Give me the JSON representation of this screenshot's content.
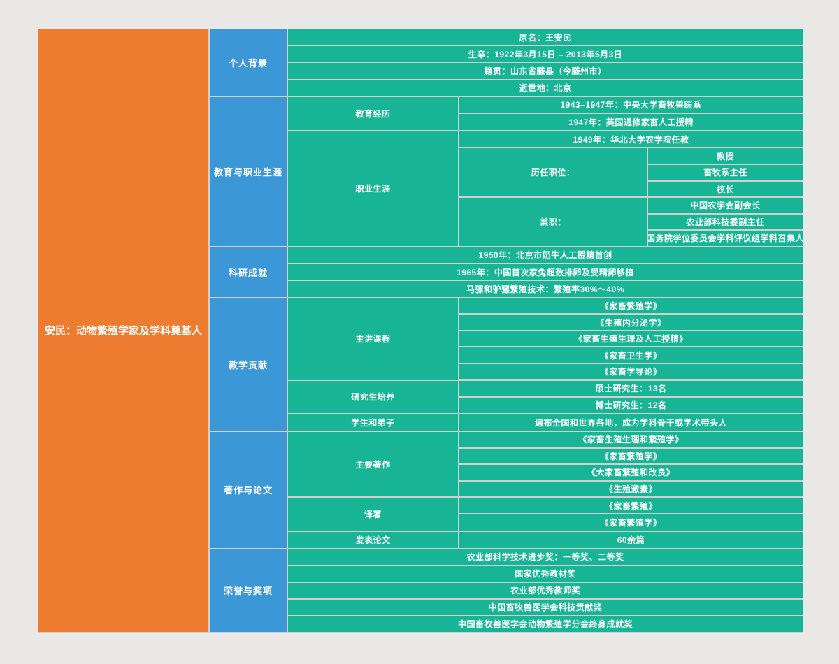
{
  "palette": {
    "background": "#e9e8e7",
    "root_fill": "#ee7c30",
    "section_fill": "#3b97d5",
    "node_fill": "#17b596",
    "text_color": "#ffffff"
  },
  "tree": {
    "name": "root-topic",
    "label": "安民：动物繁殖学家及学科奠基人",
    "children": [
      {
        "name": "personal-background",
        "label": "个人背景",
        "children": [
          {
            "label": "原名：王安民"
          },
          {
            "label": "生卒：1922年3月15日 – 2013年5月3日"
          },
          {
            "label": "籍贯：山东省滕县（今滕州市）"
          },
          {
            "label": "逝世地：北京"
          }
        ]
      },
      {
        "name": "education-and-career",
        "label": "教育与职业生涯",
        "children": [
          {
            "name": "education-history",
            "label": "教育经历",
            "children": [
              {
                "label": "1943–1947年：中央大学畜牧兽医系"
              },
              {
                "label": "1947年：英国进修家畜人工授精"
              }
            ]
          },
          {
            "name": "career",
            "label": "职业生涯",
            "children": [
              {
                "label": "1949年：华北大学农学院任教"
              },
              {
                "name": "positions-held",
                "label": "历任职位：",
                "children": [
                  {
                    "label": "教授"
                  },
                  {
                    "label": "畜牧系主任"
                  },
                  {
                    "label": "校长"
                  }
                ]
              },
              {
                "name": "concurrent-posts",
                "label": "兼职：",
                "children": [
                  {
                    "label": "中国农学会副会长"
                  },
                  {
                    "label": "农业部科技委副主任"
                  },
                  {
                    "label": "国务院学位委员会学科评议组学科召集人"
                  }
                ]
              }
            ]
          }
        ]
      },
      {
        "name": "research-achievements",
        "label": "科研成就",
        "children": [
          {
            "label": "1950年：北京市奶牛人工授精首创"
          },
          {
            "label": "1965年：中国首次家兔超数排卵及受精卵移植"
          },
          {
            "label": "马骡和驴骡繁殖技术：繁殖率30%～40%"
          }
        ]
      },
      {
        "name": "teaching-contributions",
        "label": "教学贡献",
        "children": [
          {
            "name": "courses-taught",
            "label": "主讲课程",
            "children": [
              {
                "label": "《家畜繁殖学》"
              },
              {
                "label": "《生殖内分泌学》"
              },
              {
                "label": "《家畜生殖生理及人工授精》"
              },
              {
                "label": "《家畜卫生学》"
              },
              {
                "label": "《家畜学导论》"
              }
            ]
          },
          {
            "name": "graduate-training",
            "label": "研究生培养",
            "children": [
              {
                "label": "硕士研究生：13名"
              },
              {
                "label": "博士研究生：12名"
              }
            ]
          },
          {
            "name": "students-disciples",
            "label": "学生和弟子",
            "children": [
              {
                "label": "遍布全国和世界各地，成为学科骨干或学术带头人"
              }
            ]
          }
        ]
      },
      {
        "name": "works-and-papers",
        "label": "著作与论文",
        "children": [
          {
            "name": "major-works",
            "label": "主要著作",
            "children": [
              {
                "label": "《家畜生殖生理和繁殖学》"
              },
              {
                "label": "《家畜繁殖学》"
              },
              {
                "label": "《大家畜繁殖和改良》"
              },
              {
                "label": "《生殖激素》"
              }
            ]
          },
          {
            "name": "translated-works",
            "label": "译著",
            "children": [
              {
                "label": "《家畜繁殖》"
              },
              {
                "label": "《家畜繁殖学》"
              }
            ]
          },
          {
            "name": "published-papers",
            "label": "发表论文",
            "children": [
              {
                "label": "60余篇"
              }
            ]
          }
        ]
      },
      {
        "name": "honors-and-awards",
        "label": "荣誉与奖项",
        "children": [
          {
            "label": "农业部科学技术进步奖：一等奖、二等奖"
          },
          {
            "label": "国家优秀教材奖"
          },
          {
            "label": "农业部优秀教师奖"
          },
          {
            "label": "中国畜牧兽医学会科技贡献奖"
          },
          {
            "label": "中国畜牧兽医学会动物繁殖学分会终身成就奖"
          }
        ]
      }
    ]
  }
}
